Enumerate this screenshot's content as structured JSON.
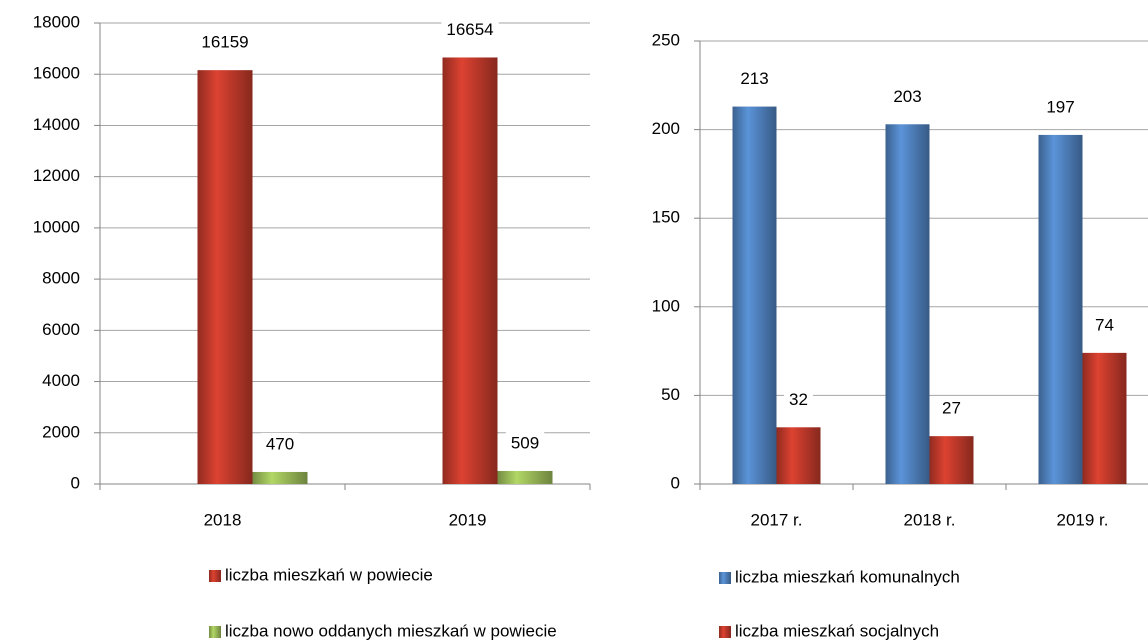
{
  "chart_data": [
    {
      "type": "bar",
      "categories": [
        "2018",
        "2019"
      ],
      "series": [
        {
          "name": "liczba mieszkań w powiecie",
          "color": "#c0392b",
          "values": [
            16159,
            16654
          ]
        },
        {
          "name": "liczba nowo oddanych mieszkań w powiecie",
          "color": "#9bbb59",
          "values": [
            470,
            509
          ]
        }
      ],
      "ylim": [
        0,
        18000
      ],
      "yticks": [
        0,
        2000,
        4000,
        6000,
        8000,
        10000,
        12000,
        14000,
        16000,
        18000
      ],
      "grid": true
    },
    {
      "type": "bar",
      "categories": [
        "2017 r.",
        "2018 r.",
        "2019 r."
      ],
      "series": [
        {
          "name": "liczba mieszkań komunalnych",
          "color": "#4f81bd",
          "values": [
            213,
            203,
            197
          ]
        },
        {
          "name": "liczba mieszkań socjalnych",
          "color": "#c0392b",
          "values": [
            32,
            27,
            74
          ]
        }
      ],
      "ylim": [
        0,
        250
      ],
      "yticks": [
        0,
        50,
        100,
        150,
        200,
        250
      ],
      "grid": true
    }
  ]
}
